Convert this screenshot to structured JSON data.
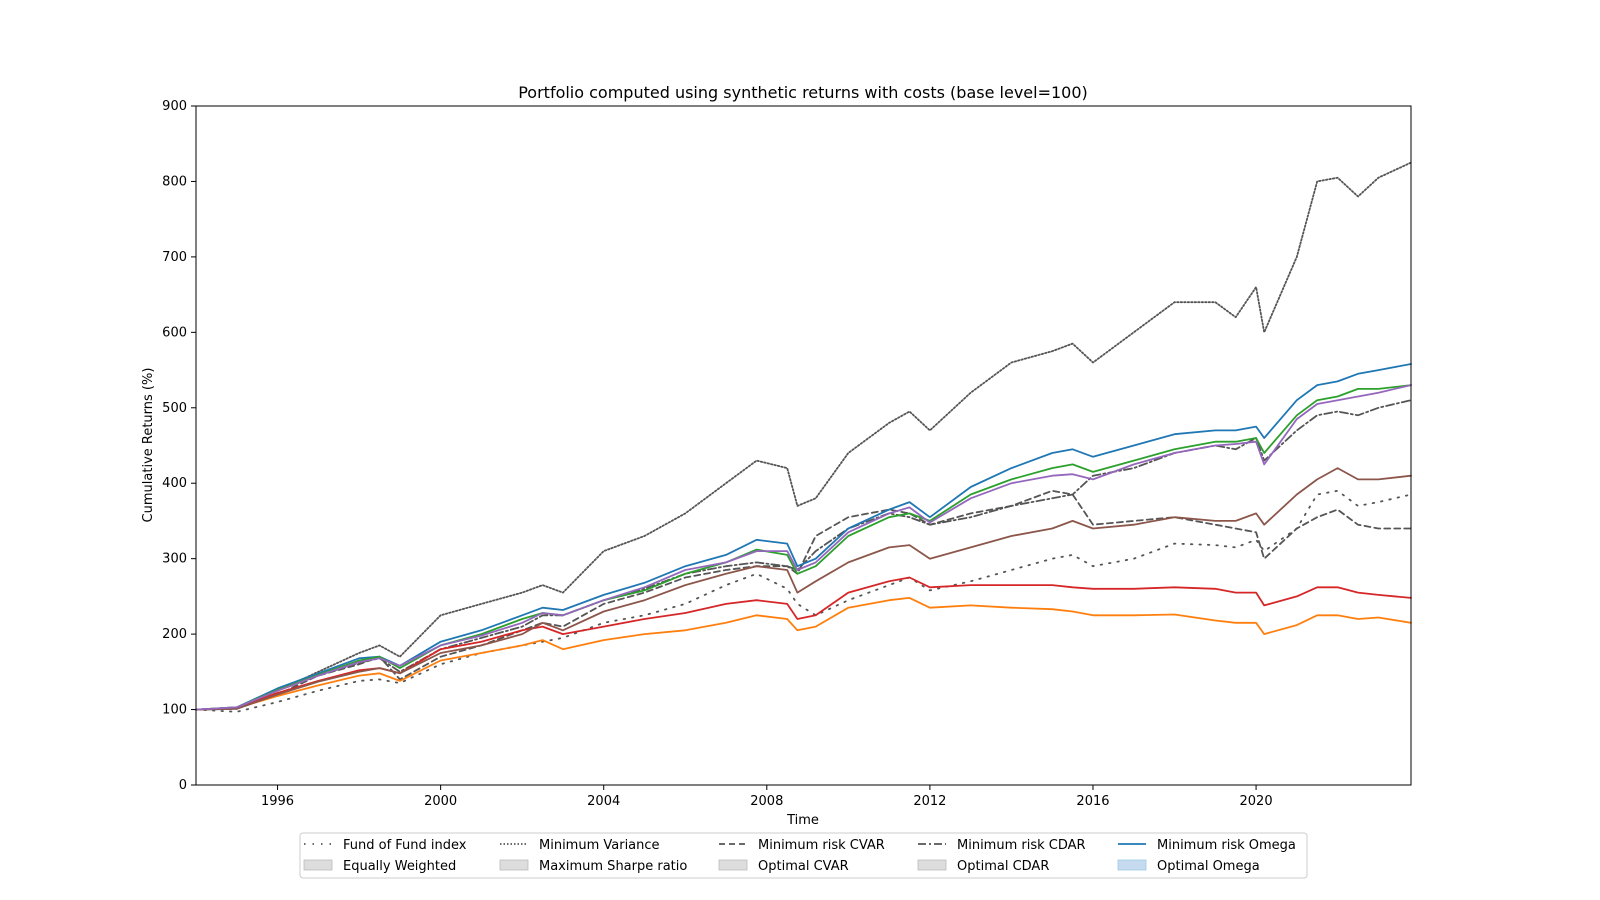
{
  "chart_data": {
    "type": "line",
    "title": "Portfolio computed using synthetic returns with costs (base level=100)",
    "xlabel": "Time",
    "ylabel": "Cumulative Returns (%)",
    "xlim": [
      1994.0,
      2023.8
    ],
    "ylim": [
      0,
      900
    ],
    "x_ticks": [
      1996,
      2000,
      2004,
      2008,
      2012,
      2016,
      2020
    ],
    "y_ticks": [
      0,
      100,
      200,
      300,
      400,
      500,
      600,
      700,
      800,
      900
    ],
    "grid": false,
    "legend_placement": "bottom-center",
    "x": [
      1994.0,
      1995.0,
      1996.0,
      1997.0,
      1998.0,
      1998.5,
      1999.0,
      2000.0,
      2001.0,
      2002.0,
      2002.5,
      2003.0,
      2004.0,
      2005.0,
      2006.0,
      2007.0,
      2007.75,
      2008.5,
      2008.75,
      2009.2,
      2010.0,
      2011.0,
      2011.5,
      2012.0,
      2013.0,
      2014.0,
      2015.0,
      2015.5,
      2016.0,
      2017.0,
      2018.0,
      2019.0,
      2019.5,
      2020.0,
      2020.2,
      2021.0,
      2021.5,
      2022.0,
      2022.5,
      2023.0,
      2023.8
    ],
    "series": [
      {
        "name": "Fund of Fund index",
        "color": "#555555",
        "style": "dotted-sparse",
        "values": [
          100,
          97,
          110,
          125,
          138,
          140,
          135,
          160,
          175,
          185,
          190,
          195,
          215,
          225,
          240,
          265,
          280,
          260,
          240,
          225,
          245,
          265,
          275,
          258,
          270,
          285,
          300,
          305,
          290,
          300,
          320,
          318,
          315,
          325,
          310,
          340,
          385,
          390,
          370,
          375,
          385
        ]
      },
      {
        "name": "Minimum Variance",
        "color": "#555555",
        "style": "dotted",
        "values": [
          100,
          102,
          125,
          150,
          175,
          185,
          170,
          225,
          240,
          255,
          265,
          255,
          310,
          330,
          360,
          400,
          430,
          420,
          370,
          380,
          440,
          480,
          495,
          470,
          520,
          560,
          575,
          585,
          560,
          600,
          640,
          640,
          620,
          660,
          600,
          700,
          800,
          805,
          780,
          805,
          825
        ]
      },
      {
        "name": "Minimum risk CVAR",
        "color": "#555555",
        "style": "dashed",
        "values": [
          100,
          101,
          120,
          145,
          160,
          170,
          140,
          170,
          185,
          205,
          215,
          210,
          240,
          255,
          275,
          285,
          290,
          290,
          280,
          330,
          355,
          365,
          360,
          345,
          360,
          370,
          390,
          385,
          345,
          350,
          355,
          345,
          340,
          335,
          300,
          340,
          355,
          365,
          345,
          340,
          340
        ]
      },
      {
        "name": "Minimum risk CDAR",
        "color": "#555555",
        "style": "dashdot",
        "values": [
          100,
          102,
          125,
          145,
          162,
          168,
          150,
          180,
          195,
          210,
          225,
          225,
          245,
          260,
          280,
          290,
          295,
          290,
          285,
          310,
          340,
          360,
          355,
          345,
          355,
          370,
          380,
          385,
          410,
          420,
          440,
          450,
          445,
          460,
          430,
          470,
          490,
          495,
          490,
          500,
          510
        ]
      },
      {
        "name": "Minimum risk Omega",
        "color": "#1f77b4",
        "style": "solid",
        "values": [
          100,
          103,
          128,
          148,
          168,
          170,
          158,
          190,
          205,
          225,
          235,
          232,
          252,
          268,
          290,
          305,
          325,
          320,
          290,
          300,
          340,
          365,
          375,
          355,
          395,
          420,
          440,
          445,
          435,
          450,
          465,
          470,
          470,
          475,
          460,
          510,
          530,
          535,
          545,
          550,
          558
        ]
      },
      {
        "name": "Equally Weighted",
        "color": "#ff7f0e",
        "style": "solid",
        "values": [
          100,
          102,
          118,
          132,
          145,
          148,
          138,
          165,
          175,
          185,
          192,
          180,
          192,
          200,
          205,
          215,
          225,
          220,
          205,
          210,
          235,
          245,
          248,
          235,
          238,
          235,
          233,
          230,
          225,
          225,
          226,
          218,
          215,
          215,
          200,
          212,
          225,
          225,
          220,
          222,
          215
        ]
      },
      {
        "name": "Maximum Sharpe ratio",
        "color": "#2ca02c",
        "style": "solid",
        "values": [
          100,
          103,
          126,
          146,
          165,
          170,
          155,
          185,
          200,
          220,
          228,
          225,
          245,
          258,
          280,
          295,
          312,
          305,
          280,
          290,
          330,
          355,
          360,
          350,
          385,
          405,
          420,
          425,
          415,
          430,
          445,
          455,
          455,
          460,
          440,
          490,
          510,
          515,
          525,
          525,
          530
        ]
      },
      {
        "name": "Optimal CVAR",
        "color": "#d62728",
        "style": "solid",
        "values": [
          100,
          102,
          122,
          138,
          152,
          155,
          148,
          180,
          190,
          205,
          210,
          200,
          210,
          220,
          228,
          240,
          245,
          240,
          220,
          225,
          255,
          270,
          275,
          262,
          265,
          265,
          265,
          262,
          260,
          260,
          262,
          260,
          255,
          255,
          238,
          250,
          262,
          262,
          255,
          252,
          248
        ]
      },
      {
        "name": "Optimal CDAR",
        "color": "#8c564b",
        "style": "solid",
        "values": [
          100,
          101,
          120,
          137,
          150,
          155,
          148,
          175,
          185,
          200,
          215,
          205,
          230,
          245,
          265,
          280,
          290,
          285,
          255,
          270,
          295,
          315,
          318,
          300,
          315,
          330,
          340,
          350,
          340,
          345,
          355,
          350,
          350,
          360,
          345,
          385,
          405,
          420,
          405,
          405,
          410
        ]
      },
      {
        "name": "Optimal Omega",
        "color": "#9467bd",
        "style": "solid",
        "values": [
          100,
          103,
          125,
          145,
          163,
          168,
          158,
          185,
          198,
          215,
          228,
          225,
          245,
          262,
          285,
          295,
          310,
          310,
          285,
          295,
          335,
          360,
          368,
          348,
          380,
          400,
          410,
          412,
          405,
          425,
          440,
          450,
          452,
          455,
          425,
          485,
          505,
          510,
          515,
          520,
          530
        ]
      }
    ],
    "legend": [
      {
        "label": "Fund of Fund index",
        "marker": "dotted-sparse"
      },
      {
        "label": "Minimum Variance",
        "marker": "dotted"
      },
      {
        "label": "Minimum risk CVAR",
        "marker": "dashed"
      },
      {
        "label": "Minimum risk CDAR",
        "marker": "dashdot"
      },
      {
        "label": "Minimum risk Omega",
        "marker": "solid-blue"
      },
      {
        "label": "Equally Weighted",
        "marker": "box-gray"
      },
      {
        "label": "Maximum Sharpe ratio",
        "marker": "box-gray"
      },
      {
        "label": "Optimal CVAR",
        "marker": "box-gray"
      },
      {
        "label": "Optimal CDAR",
        "marker": "box-gray"
      },
      {
        "label": "Optimal Omega",
        "marker": "box-blue"
      }
    ]
  }
}
